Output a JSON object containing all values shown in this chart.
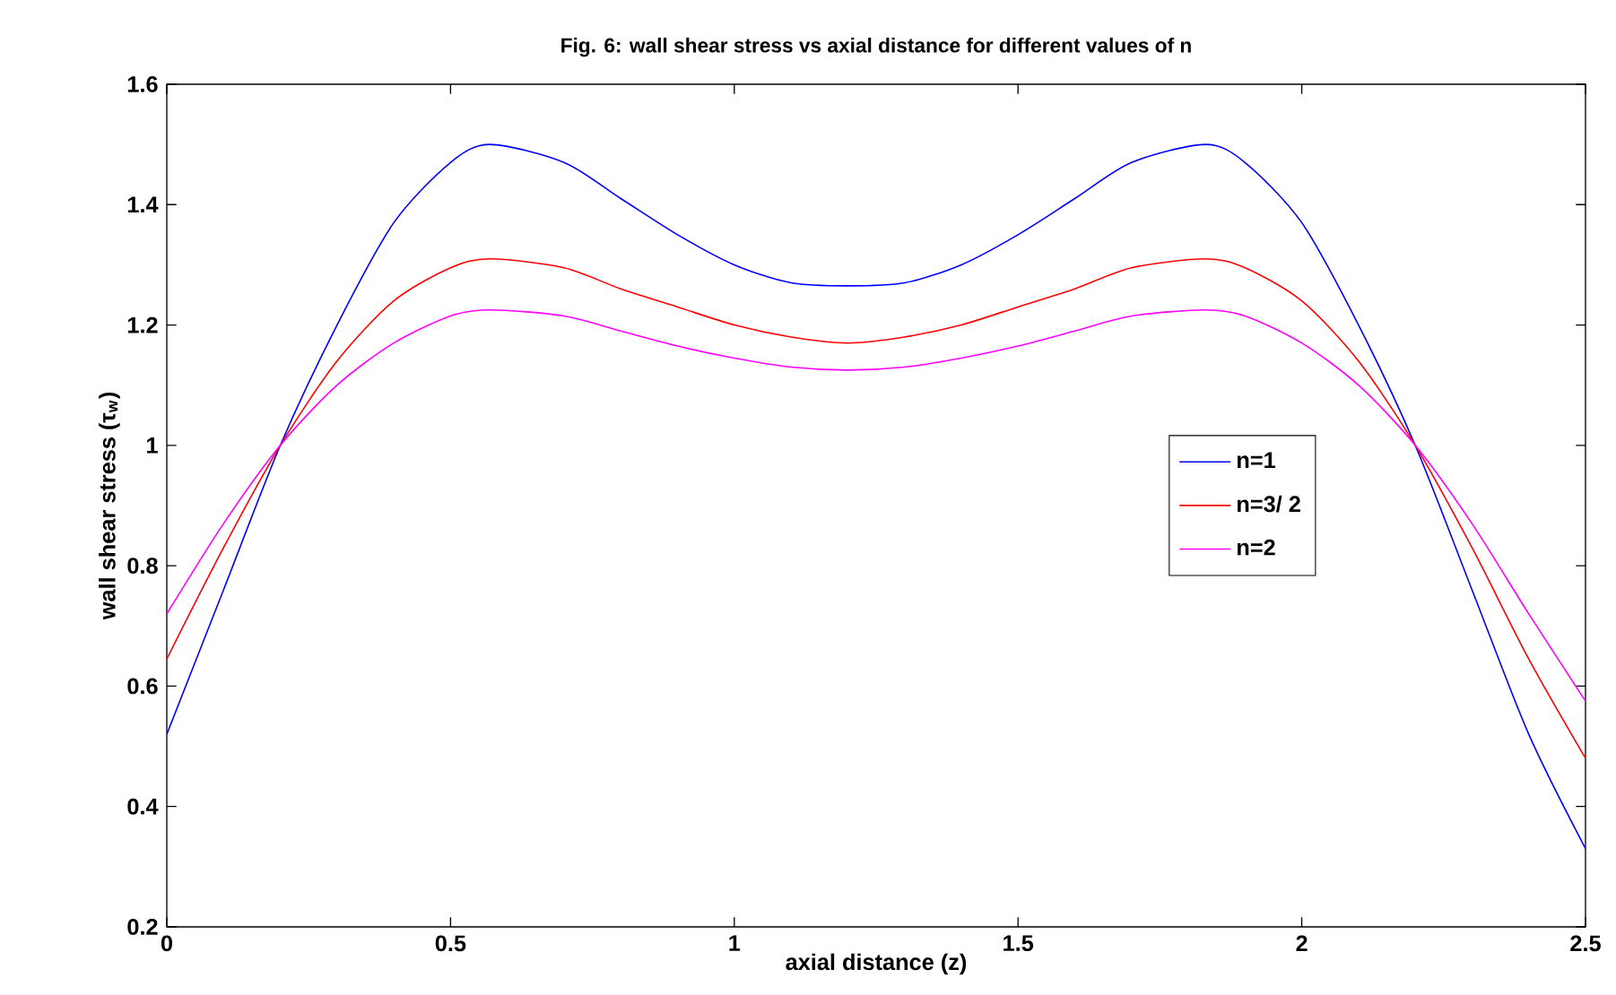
{
  "chart_data": {
    "type": "line",
    "title": "Fig. 6: wall shear stress vs axial distance for different values of n",
    "xlabel": "axial distance (z)",
    "ylabel": "wall shear stress (τ$_{w}$)",
    "x": [
      0,
      0.1,
      0.2,
      0.3,
      0.4,
      0.5,
      0.57,
      0.7,
      0.8,
      0.9,
      1.0,
      1.1,
      1.2,
      1.3,
      1.4,
      1.5,
      1.6,
      1.7,
      1.83,
      1.9,
      2.0,
      2.1,
      2.2,
      2.3,
      2.4,
      2.5
    ],
    "series": [
      {
        "name": "n=1",
        "color": "#0000ff",
        "values": [
          0.52,
          0.76,
          1.0,
          1.2,
          1.37,
          1.47,
          1.5,
          1.47,
          1.41,
          1.35,
          1.3,
          1.27,
          1.265,
          1.27,
          1.3,
          1.35,
          1.41,
          1.47,
          1.5,
          1.47,
          1.37,
          1.2,
          1.0,
          0.76,
          0.52,
          0.33
        ]
      },
      {
        "name": "n=3/ 2",
        "color": "#ff0000",
        "values": [
          0.645,
          0.83,
          1.0,
          1.14,
          1.24,
          1.295,
          1.31,
          1.295,
          1.26,
          1.23,
          1.2,
          1.18,
          1.17,
          1.18,
          1.2,
          1.23,
          1.26,
          1.295,
          1.31,
          1.295,
          1.24,
          1.14,
          1.0,
          0.83,
          0.645,
          0.48
        ]
      },
      {
        "name": "n=2",
        "color": "#ff00ff",
        "values": [
          0.72,
          0.87,
          1.0,
          1.1,
          1.17,
          1.215,
          1.225,
          1.215,
          1.19,
          1.165,
          1.145,
          1.13,
          1.125,
          1.13,
          1.145,
          1.165,
          1.19,
          1.215,
          1.225,
          1.215,
          1.17,
          1.1,
          1.0,
          0.87,
          0.72,
          0.575
        ]
      }
    ],
    "xlim": [
      0,
      2.5
    ],
    "xticks": [
      0,
      0.5,
      1,
      1.5,
      2,
      2.5
    ],
    "ylim": [
      0.2,
      1.6
    ],
    "yticks": [
      0.2,
      0.4,
      0.6,
      0.8,
      1,
      1.2,
      1.4,
      1.6
    ],
    "grid": false,
    "legend": "right",
    "marker": "none",
    "line_style": "solid"
  }
}
